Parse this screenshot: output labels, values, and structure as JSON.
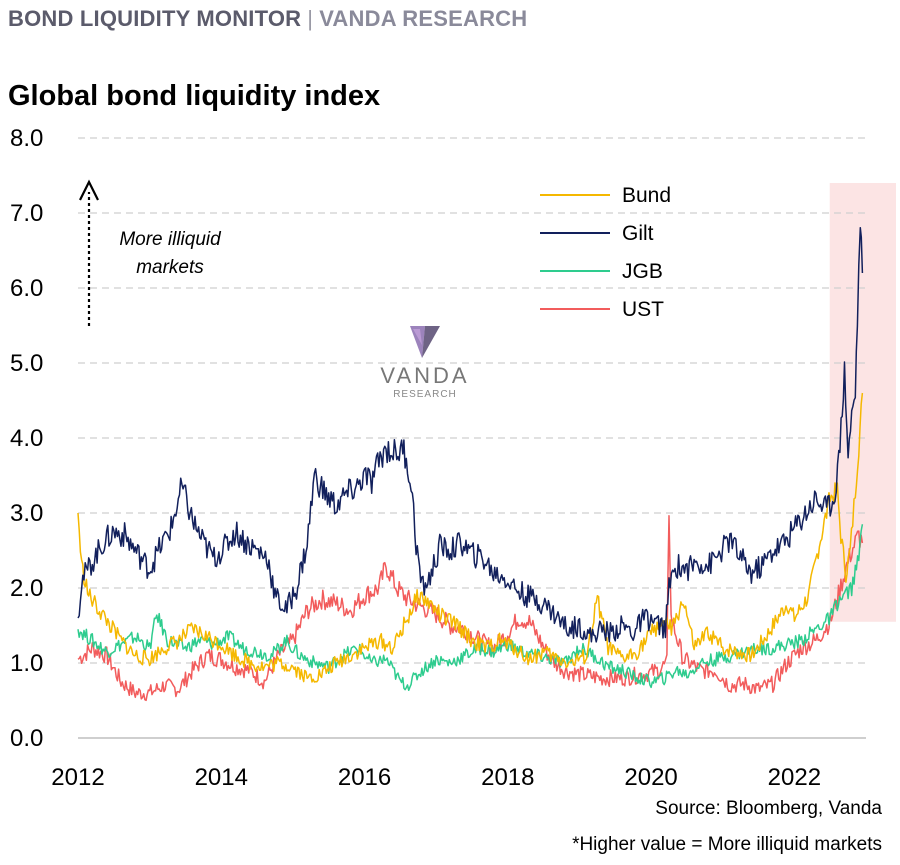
{
  "header": {
    "main": "BOND LIQUIDITY MONITOR",
    "separator": "|",
    "sub": "VANDA RESEARCH"
  },
  "footer": {
    "source": "Source: Bloomberg, Vanda",
    "note": "*Higher value = More illiquid markets"
  },
  "watermark": {
    "name": "VANDA",
    "sub": "RESEARCH"
  },
  "chart_data": {
    "type": "line",
    "title": "Global bond liquidity index",
    "xlabel": "",
    "ylabel": "",
    "xlim": [
      2012.0,
      2023.0
    ],
    "ylim": [
      0,
      8
    ],
    "yticks": [
      "0.0",
      "1.0",
      "2.0",
      "3.0",
      "4.0",
      "5.0",
      "6.0",
      "7.0",
      "8.0"
    ],
    "xticks": [
      "2012",
      "2014",
      "2016",
      "2018",
      "2020",
      "2022"
    ],
    "grid": "horizontal dashed",
    "legend_position": "top-right",
    "annotation": {
      "line1": "More illiquid",
      "line2": "markets"
    },
    "highlight": {
      "x_start": 2022.55,
      "x_end": 2023.0,
      "y_start": 1.55,
      "y_end": 7.4,
      "color": "#fce4e4"
    },
    "series": [
      {
        "name": "UST",
        "color": "#f25c5c",
        "points": [
          [
            2012.0,
            1.05
          ],
          [
            2012.2,
            1.2
          ],
          [
            2012.4,
            1.1
          ],
          [
            2012.6,
            0.75
          ],
          [
            2012.8,
            0.6
          ],
          [
            2013.0,
            0.6
          ],
          [
            2013.2,
            0.7
          ],
          [
            2013.4,
            0.65
          ],
          [
            2013.6,
            0.9
          ],
          [
            2013.8,
            1.1
          ],
          [
            2014.0,
            1.05
          ],
          [
            2014.2,
            0.95
          ],
          [
            2014.4,
            0.9
          ],
          [
            2014.6,
            0.75
          ],
          [
            2014.8,
            1.1
          ],
          [
            2015.0,
            1.3
          ],
          [
            2015.2,
            1.7
          ],
          [
            2015.4,
            1.85
          ],
          [
            2015.6,
            1.8
          ],
          [
            2015.8,
            1.7
          ],
          [
            2016.0,
            1.9
          ],
          [
            2016.2,
            2.0
          ],
          [
            2016.3,
            2.3
          ],
          [
            2016.45,
            2.0
          ],
          [
            2016.6,
            1.85
          ],
          [
            2016.8,
            1.75
          ],
          [
            2017.0,
            1.65
          ],
          [
            2017.2,
            1.5
          ],
          [
            2017.4,
            1.45
          ],
          [
            2017.6,
            1.3
          ],
          [
            2017.8,
            1.2
          ],
          [
            2018.0,
            1.4
          ],
          [
            2018.15,
            1.6
          ],
          [
            2018.3,
            1.55
          ],
          [
            2018.45,
            1.3
          ],
          [
            2018.6,
            1.05
          ],
          [
            2018.8,
            0.9
          ],
          [
            2019.0,
            0.85
          ],
          [
            2019.3,
            0.8
          ],
          [
            2019.6,
            0.8
          ],
          [
            2019.9,
            0.85
          ],
          [
            2020.1,
            0.9
          ],
          [
            2020.22,
            1.0
          ],
          [
            2020.25,
            3.05
          ],
          [
            2020.28,
            1.6
          ],
          [
            2020.45,
            1.05
          ],
          [
            2020.7,
            0.9
          ],
          [
            2020.9,
            0.9
          ],
          [
            2021.1,
            0.7
          ],
          [
            2021.3,
            0.72
          ],
          [
            2021.5,
            0.65
          ],
          [
            2021.7,
            0.72
          ],
          [
            2021.9,
            1.0
          ],
          [
            2022.1,
            1.2
          ],
          [
            2022.3,
            1.3
          ],
          [
            2022.5,
            1.55
          ],
          [
            2022.6,
            1.85
          ],
          [
            2022.7,
            2.2
          ],
          [
            2022.8,
            2.5
          ],
          [
            2022.9,
            2.7
          ],
          [
            2022.95,
            2.6
          ]
        ]
      },
      {
        "name": "JGB",
        "color": "#2ecc8e",
        "points": [
          [
            2012.0,
            1.45
          ],
          [
            2012.2,
            1.3
          ],
          [
            2012.4,
            1.15
          ],
          [
            2012.6,
            1.25
          ],
          [
            2012.8,
            1.35
          ],
          [
            2013.0,
            1.2
          ],
          [
            2013.1,
            1.65
          ],
          [
            2013.25,
            1.3
          ],
          [
            2013.5,
            1.2
          ],
          [
            2013.7,
            1.3
          ],
          [
            2013.9,
            1.25
          ],
          [
            2014.1,
            1.35
          ],
          [
            2014.3,
            1.2
          ],
          [
            2014.5,
            1.15
          ],
          [
            2014.7,
            1.1
          ],
          [
            2014.9,
            1.3
          ],
          [
            2015.1,
            1.1
          ],
          [
            2015.3,
            1.0
          ],
          [
            2015.5,
            0.95
          ],
          [
            2015.7,
            1.1
          ],
          [
            2015.9,
            1.2
          ],
          [
            2016.1,
            1.0
          ],
          [
            2016.3,
            1.05
          ],
          [
            2016.5,
            0.75
          ],
          [
            2016.6,
            0.7
          ],
          [
            2016.8,
            0.9
          ],
          [
            2017.0,
            1.05
          ],
          [
            2017.2,
            1.0
          ],
          [
            2017.4,
            1.1
          ],
          [
            2017.6,
            1.2
          ],
          [
            2017.8,
            1.15
          ],
          [
            2018.0,
            1.25
          ],
          [
            2018.2,
            1.15
          ],
          [
            2018.4,
            1.1
          ],
          [
            2018.6,
            1.05
          ],
          [
            2018.8,
            1.0
          ],
          [
            2019.0,
            1.2
          ],
          [
            2019.2,
            1.1
          ],
          [
            2019.4,
            0.95
          ],
          [
            2019.6,
            0.9
          ],
          [
            2019.8,
            0.8
          ],
          [
            2020.0,
            0.75
          ],
          [
            2020.2,
            0.8
          ],
          [
            2020.35,
            0.9
          ],
          [
            2020.5,
            0.85
          ],
          [
            2020.7,
            1.0
          ],
          [
            2020.9,
            1.05
          ],
          [
            2021.1,
            1.1
          ],
          [
            2021.3,
            1.15
          ],
          [
            2021.5,
            1.2
          ],
          [
            2021.7,
            1.2
          ],
          [
            2021.9,
            1.25
          ],
          [
            2022.1,
            1.3
          ],
          [
            2022.3,
            1.45
          ],
          [
            2022.5,
            1.6
          ],
          [
            2022.6,
            1.8
          ],
          [
            2022.7,
            1.9
          ],
          [
            2022.8,
            2.0
          ],
          [
            2022.9,
            2.4
          ],
          [
            2022.95,
            2.85
          ]
        ]
      },
      {
        "name": "Bund",
        "color": "#f5b800",
        "points": [
          [
            2012.0,
            3.0
          ],
          [
            2012.05,
            2.3
          ],
          [
            2012.15,
            1.9
          ],
          [
            2012.3,
            1.7
          ],
          [
            2012.45,
            1.5
          ],
          [
            2012.6,
            1.3
          ],
          [
            2012.8,
            1.1
          ],
          [
            2013.0,
            1.05
          ],
          [
            2013.2,
            1.2
          ],
          [
            2013.4,
            1.3
          ],
          [
            2013.6,
            1.45
          ],
          [
            2013.8,
            1.35
          ],
          [
            2014.0,
            1.25
          ],
          [
            2014.2,
            1.1
          ],
          [
            2014.4,
            1.0
          ],
          [
            2014.6,
            0.95
          ],
          [
            2014.8,
            1.0
          ],
          [
            2015.0,
            0.95
          ],
          [
            2015.2,
            0.8
          ],
          [
            2015.4,
            0.85
          ],
          [
            2015.6,
            1.0
          ],
          [
            2015.8,
            1.1
          ],
          [
            2016.0,
            1.2
          ],
          [
            2016.2,
            1.3
          ],
          [
            2016.4,
            1.2
          ],
          [
            2016.6,
            1.6
          ],
          [
            2016.75,
            1.9
          ],
          [
            2016.9,
            1.8
          ],
          [
            2017.1,
            1.6
          ],
          [
            2017.3,
            1.5
          ],
          [
            2017.5,
            1.3
          ],
          [
            2017.7,
            1.2
          ],
          [
            2017.9,
            1.3
          ],
          [
            2018.1,
            1.2
          ],
          [
            2018.3,
            1.05
          ],
          [
            2018.5,
            1.15
          ],
          [
            2018.7,
            1.05
          ],
          [
            2018.9,
            1.0
          ],
          [
            2019.1,
            1.1
          ],
          [
            2019.25,
            1.85
          ],
          [
            2019.4,
            1.2
          ],
          [
            2019.6,
            1.05
          ],
          [
            2019.8,
            1.15
          ],
          [
            2020.0,
            1.4
          ],
          [
            2020.15,
            1.55
          ],
          [
            2020.3,
            1.45
          ],
          [
            2020.45,
            1.85
          ],
          [
            2020.6,
            1.2
          ],
          [
            2020.8,
            1.4
          ],
          [
            2021.0,
            1.2
          ],
          [
            2021.2,
            1.15
          ],
          [
            2021.4,
            1.1
          ],
          [
            2021.6,
            1.35
          ],
          [
            2021.8,
            1.65
          ],
          [
            2021.9,
            1.8
          ],
          [
            2022.0,
            1.6
          ],
          [
            2022.2,
            1.9
          ],
          [
            2022.35,
            2.6
          ],
          [
            2022.5,
            3.2
          ],
          [
            2022.6,
            3.3
          ],
          [
            2022.65,
            2.7
          ],
          [
            2022.72,
            2.2
          ],
          [
            2022.78,
            2.5
          ],
          [
            2022.85,
            3.3
          ],
          [
            2022.9,
            3.9
          ],
          [
            2022.95,
            4.6
          ]
        ]
      },
      {
        "name": "Gilt",
        "color": "#12205c",
        "points": [
          [
            2012.0,
            1.6
          ],
          [
            2012.05,
            2.1
          ],
          [
            2012.2,
            2.35
          ],
          [
            2012.35,
            2.6
          ],
          [
            2012.5,
            2.75
          ],
          [
            2012.65,
            2.7
          ],
          [
            2012.8,
            2.5
          ],
          [
            2013.0,
            2.25
          ],
          [
            2013.15,
            2.55
          ],
          [
            2013.3,
            2.8
          ],
          [
            2013.45,
            3.35
          ],
          [
            2013.6,
            2.9
          ],
          [
            2013.75,
            2.6
          ],
          [
            2013.9,
            2.4
          ],
          [
            2014.05,
            2.55
          ],
          [
            2014.2,
            2.75
          ],
          [
            2014.35,
            2.6
          ],
          [
            2014.5,
            2.5
          ],
          [
            2014.65,
            2.4
          ],
          [
            2014.75,
            1.9
          ],
          [
            2014.9,
            1.7
          ],
          [
            2015.05,
            2.0
          ],
          [
            2015.2,
            2.6
          ],
          [
            2015.3,
            3.5
          ],
          [
            2015.45,
            3.25
          ],
          [
            2015.6,
            3.1
          ],
          [
            2015.75,
            3.25
          ],
          [
            2015.9,
            3.35
          ],
          [
            2016.0,
            3.5
          ],
          [
            2016.1,
            3.4
          ],
          [
            2016.2,
            3.7
          ],
          [
            2016.3,
            3.85
          ],
          [
            2016.45,
            3.8
          ],
          [
            2016.55,
            3.85
          ],
          [
            2016.65,
            3.4
          ],
          [
            2016.72,
            2.6
          ],
          [
            2016.8,
            2.0
          ],
          [
            2016.9,
            2.1
          ],
          [
            2017.05,
            2.55
          ],
          [
            2017.2,
            2.5
          ],
          [
            2017.35,
            2.6
          ],
          [
            2017.5,
            2.45
          ],
          [
            2017.65,
            2.4
          ],
          [
            2017.8,
            2.2
          ],
          [
            2017.95,
            2.15
          ],
          [
            2018.1,
            2.0
          ],
          [
            2018.25,
            1.9
          ],
          [
            2018.4,
            1.85
          ],
          [
            2018.55,
            1.75
          ],
          [
            2018.7,
            1.6
          ],
          [
            2018.85,
            1.45
          ],
          [
            2019.0,
            1.5
          ],
          [
            2019.15,
            1.35
          ],
          [
            2019.3,
            1.45
          ],
          [
            2019.45,
            1.4
          ],
          [
            2019.6,
            1.5
          ],
          [
            2019.75,
            1.4
          ],
          [
            2019.9,
            1.6
          ],
          [
            2020.05,
            1.55
          ],
          [
            2020.2,
            1.45
          ],
          [
            2020.25,
            2.0
          ],
          [
            2020.35,
            2.3
          ],
          [
            2020.5,
            2.25
          ],
          [
            2020.65,
            2.35
          ],
          [
            2020.8,
            2.3
          ],
          [
            2020.95,
            2.45
          ],
          [
            2021.1,
            2.65
          ],
          [
            2021.25,
            2.4
          ],
          [
            2021.4,
            2.2
          ],
          [
            2021.55,
            2.3
          ],
          [
            2021.7,
            2.5
          ],
          [
            2021.85,
            2.6
          ],
          [
            2022.0,
            2.8
          ],
          [
            2022.15,
            3.0
          ],
          [
            2022.3,
            3.2
          ],
          [
            2022.45,
            3.05
          ],
          [
            2022.55,
            3.2
          ],
          [
            2022.62,
            3.7
          ],
          [
            2022.7,
            4.9
          ],
          [
            2022.75,
            3.8
          ],
          [
            2022.8,
            4.3
          ],
          [
            2022.85,
            4.6
          ],
          [
            2022.88,
            5.6
          ],
          [
            2022.92,
            6.9
          ],
          [
            2022.95,
            6.2
          ]
        ]
      }
    ]
  }
}
